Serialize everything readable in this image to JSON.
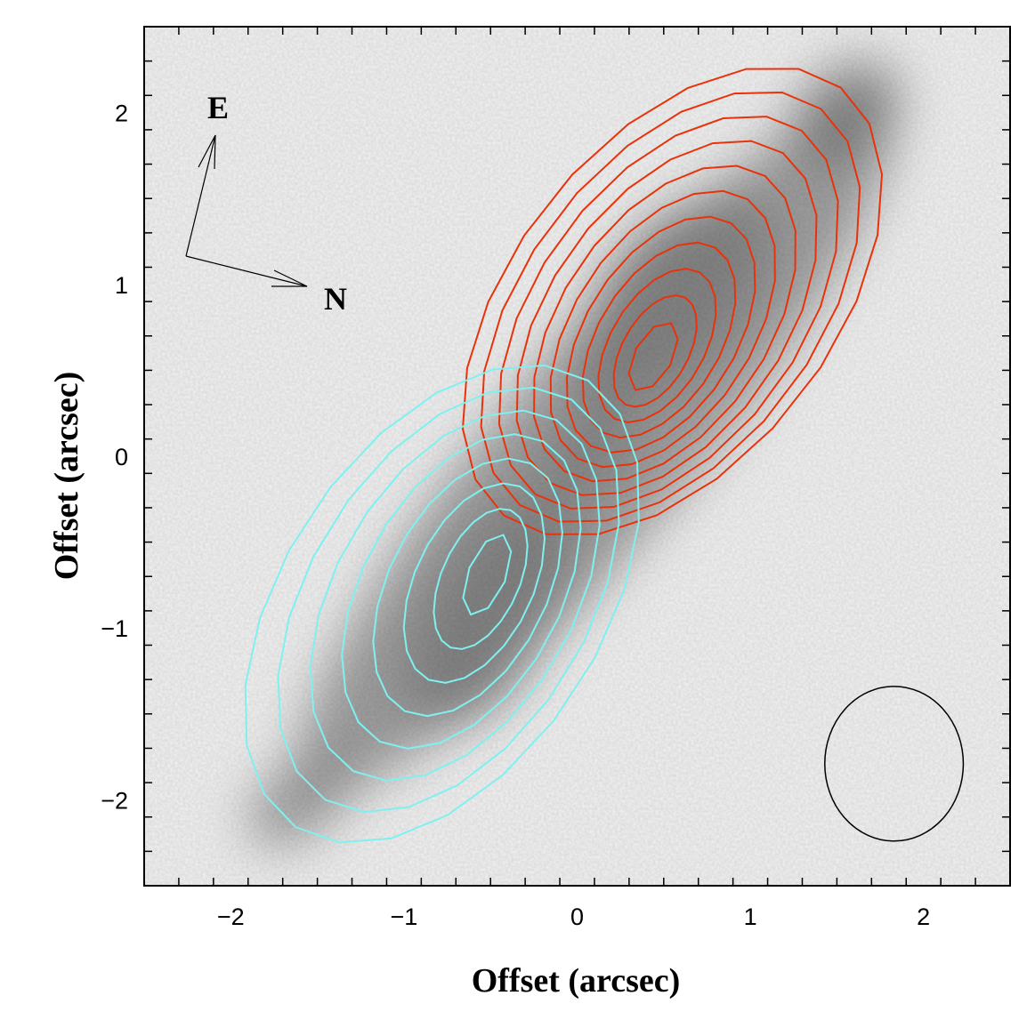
{
  "chart_data": {
    "type": "contour",
    "title": "",
    "xlabel": "Offset (arcsec)",
    "ylabel": "Offset (arcsec)",
    "xlim": [
      -2.5,
      2.5
    ],
    "ylim": [
      -2.5,
      2.5
    ],
    "xticks": [
      -2,
      -1,
      0,
      1,
      2
    ],
    "yticks": [
      -2,
      -1,
      0,
      1,
      2
    ],
    "xtick_labels": [
      "−2",
      "−1",
      "0",
      "1",
      "2"
    ],
    "ytick_labels": [
      "−2",
      "−1",
      "0",
      "1",
      "2"
    ],
    "minor_tick_step": 0.2,
    "grid": false,
    "background": "greyscale image",
    "compass": {
      "east_label": "E",
      "north_label": "N"
    },
    "beam": {
      "center": [
        1.83,
        -1.79
      ],
      "semi_x": 0.4,
      "semi_y": 0.45
    },
    "series": [
      {
        "name": "red contours",
        "color": "#e8320a",
        "levels": 11,
        "inner": {
          "center": [
            0.44,
            0.58
          ],
          "a": 0.22,
          "b": 0.11,
          "angle_deg": 62
        },
        "outer": {
          "center": [
            0.55,
            0.9
          ],
          "a": 1.58,
          "b": 0.92,
          "angle_deg": 52
        }
      },
      {
        "name": "cyan contours",
        "color": "#7ff0f0",
        "levels": 8,
        "inner": {
          "center": [
            -0.52,
            -0.69
          ],
          "a": 0.25,
          "b": 0.11,
          "angle_deg": 68
        },
        "outer": {
          "center": [
            -0.78,
            -0.86
          ],
          "a": 1.55,
          "b": 0.92,
          "angle_deg": 57
        }
      }
    ],
    "image_blobs": [
      {
        "center": [
          -0.5,
          -0.9
        ],
        "a": 0.75,
        "b": 0.35,
        "angle_deg": 60,
        "intensity": 1.0
      },
      {
        "center": [
          0.55,
          0.9
        ],
        "a": 0.75,
        "b": 0.38,
        "angle_deg": 50,
        "intensity": 0.95
      },
      {
        "center": [
          0.05,
          0.0
        ],
        "a": 0.35,
        "b": 0.2,
        "angle_deg": 45,
        "intensity": 0.9
      },
      {
        "center": [
          0.1,
          0.05
        ],
        "a": 2.6,
        "b": 0.55,
        "angle_deg": 50,
        "intensity": 0.45
      },
      {
        "center": [
          1.55,
          2.0
        ],
        "a": 0.35,
        "b": 0.25,
        "angle_deg": 40,
        "intensity": 0.55
      },
      {
        "center": [
          -1.6,
          -2.0
        ],
        "a": 0.35,
        "b": 0.2,
        "angle_deg": 40,
        "intensity": 0.45
      }
    ]
  }
}
